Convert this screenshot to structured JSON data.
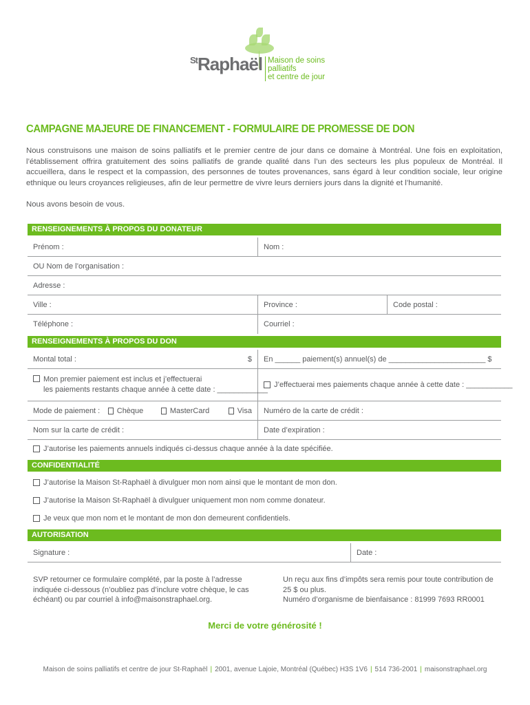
{
  "logo": {
    "brand": "St Raphaël",
    "tagline_1": "Maison de soins palliatifs",
    "tagline_2": "et centre de jour"
  },
  "title": "CAMPAGNE MAJEURE DE FINANCEMENT - FORMULAIRE DE PROMESSE DE DON",
  "intro": "Nous construisons une maison de soins palliatifs et le premier centre de jour dans ce domaine à Montréal. Une fois en exploitation, l’établissement offrira gratuitement des soins palliatifs de grande qualité dans l’un des secteurs les plus populeux de Montréal. Il accueillera, dans le respect et la compassion, des personnes de toutes provenances, sans égard à leur condition sociale, leur origine ethnique ou leurs croyances religieuses, afin de leur permettre de vivre leurs derniers jours dans la dignité et l’humanité.",
  "intro2": "Nous avons besoin de vous.",
  "donor": {
    "header": "RENSEIGNEMENTS À PROPOS DU DONATEUR",
    "prenom": "Prénom :",
    "nom": "Nom :",
    "org": "OU Nom de l’organisation :",
    "adresse": "Adresse :",
    "ville": "Ville :",
    "province": "Province :",
    "code_postal": "Code postal :",
    "telephone": "Téléphone :",
    "courriel": "Courriel :"
  },
  "don": {
    "header": "RENSEIGNEMENTS À PROPOS DU DON",
    "montant": "Montal total :",
    "dollar": "$",
    "en": "En ______ paiement(s) annuel(s) de _______________________ $",
    "premier_1": "Mon premier paiement est inclus et j’effectuerai",
    "premier_2": "les paiements restants chaque année à cette date : ____________",
    "chaque": "J’effectuerai mes paiements chaque année à cette date : ___________",
    "mode": "Mode de paiement :",
    "cheque": "Chèque",
    "mastercard": "MasterCard",
    "visa": "Visa",
    "numero": "Numéro de la carte de crédit :",
    "nom_carte": "Nom sur la carte de crédit :",
    "expiration": "Date d’expiration :",
    "autorise": "J’autorise les paiements annuels indiqués ci-dessus chaque année à la date spécifiée."
  },
  "conf": {
    "header": "CONFIDENTIALITÉ",
    "opt1": "J’autorise la Maison St-Raphaël à divulguer mon nom ainsi que le montant de mon don.",
    "opt2": "J’autorise la Maison St-Raphaël à divulguer uniquement mon nom comme donateur.",
    "opt3": "Je veux que mon nom et le montant de mon don demeurent confidentiels."
  },
  "auth": {
    "header": "AUTORISATION",
    "signature": "Signature :",
    "date": "Date :"
  },
  "return_text": "SVP retourner ce formulaire complété, par la poste à l’adresse indiquée ci-dessous (n’oubliez pas d’inclure votre chèque, le cas échéant) ou par courriel à info@maisonstraphael.org.",
  "receipt_1": "Un reçu aux fins d’impôts sera remis pour toute contribution de 25 $ ou plus.",
  "receipt_2": "Numéro d’organisme de bienfaisance : 81999 7693 RR0001",
  "merci": "Merci de votre générosité !",
  "footer": {
    "name": "Maison de soins palliatifs et centre de jour St-Raphaël",
    "address": "2001, avenue Lajoie, Montréal (Québec)  H3S 1V6",
    "phone": "514 736-2001",
    "web": "maisonstraphael.org"
  },
  "colors": {
    "accent": "#6cbb1f",
    "text": "#58595b"
  }
}
